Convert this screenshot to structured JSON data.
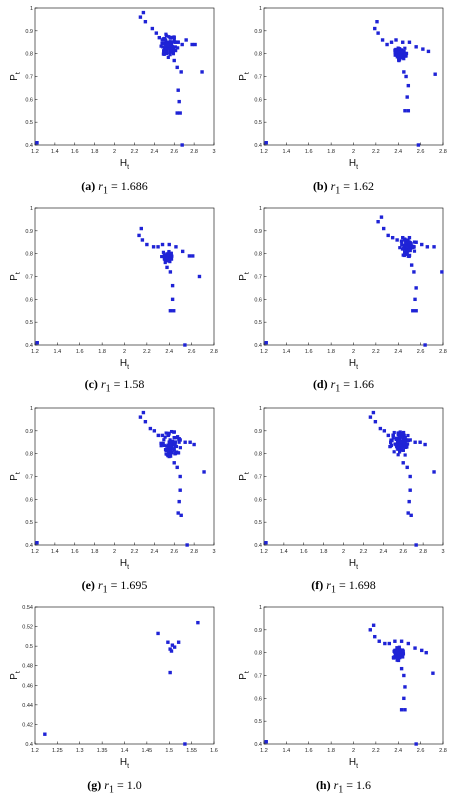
{
  "chart_data": [
    {
      "type": "scatter",
      "caption": {
        "label": "(a)",
        "var": "r",
        "sub": "1",
        "value": "= 1.686"
      },
      "xlabel": {
        "main": "H",
        "sub": "t"
      },
      "ylabel": {
        "main": "P",
        "sub": "t"
      },
      "xlim": [
        1.2,
        3.0
      ],
      "ylim": [
        0.4,
        1.0
      ],
      "xticks": [
        "1.2",
        "1.4",
        "1.6",
        "1.8",
        "2",
        "2.2",
        "2.4",
        "2.6",
        "2.8",
        "3"
      ],
      "yticks": [
        "0.4",
        "0.5",
        "0.6",
        "0.7",
        "0.8",
        "0.9",
        "1"
      ],
      "color": "#1f23d6",
      "cluster": {
        "x": 2.55,
        "y": 0.835,
        "spread": 0.1
      },
      "points": [
        [
          1.22,
          0.41
        ],
        [
          2.26,
          0.96
        ],
        [
          2.29,
          0.98
        ],
        [
          2.31,
          0.94
        ],
        [
          2.38,
          0.91
        ],
        [
          2.42,
          0.89
        ],
        [
          2.45,
          0.87
        ],
        [
          2.48,
          0.86
        ],
        [
          2.51,
          0.86
        ],
        [
          2.56,
          0.87
        ],
        [
          2.6,
          0.87
        ],
        [
          2.64,
          0.85
        ],
        [
          2.68,
          0.84
        ],
        [
          2.72,
          0.86
        ],
        [
          2.78,
          0.84
        ],
        [
          2.81,
          0.84
        ],
        [
          2.88,
          0.72
        ],
        [
          2.6,
          0.77
        ],
        [
          2.63,
          0.74
        ],
        [
          2.67,
          0.72
        ],
        [
          2.64,
          0.64
        ],
        [
          2.65,
          0.59
        ],
        [
          2.63,
          0.54
        ],
        [
          2.66,
          0.54
        ],
        [
          2.68,
          0.4
        ]
      ]
    },
    {
      "type": "scatter",
      "caption": {
        "label": "(b)",
        "var": "r",
        "sub": "1",
        "value": "= 1.62"
      },
      "xlabel": {
        "main": "H",
        "sub": "t"
      },
      "ylabel": {
        "main": "P",
        "sub": "t"
      },
      "xlim": [
        1.2,
        2.8
      ],
      "ylim": [
        0.4,
        1.0
      ],
      "xticks": [
        "1.2",
        "1.4",
        "1.6",
        "1.8",
        "2",
        "2.2",
        "2.4",
        "2.6",
        "2.8"
      ],
      "yticks": [
        "0.4",
        "0.5",
        "0.6",
        "0.7",
        "0.8",
        "0.9",
        "1"
      ],
      "color": "#1f23d6",
      "cluster": {
        "x": 2.42,
        "y": 0.8,
        "spread": 0.06
      },
      "points": [
        [
          1.22,
          0.41
        ],
        [
          2.19,
          0.91
        ],
        [
          2.21,
          0.94
        ],
        [
          2.22,
          0.89
        ],
        [
          2.26,
          0.86
        ],
        [
          2.3,
          0.84
        ],
        [
          2.34,
          0.85
        ],
        [
          2.38,
          0.86
        ],
        [
          2.44,
          0.85
        ],
        [
          2.5,
          0.85
        ],
        [
          2.56,
          0.83
        ],
        [
          2.62,
          0.82
        ],
        [
          2.67,
          0.81
        ],
        [
          2.73,
          0.71
        ],
        [
          2.45,
          0.72
        ],
        [
          2.47,
          0.7
        ],
        [
          2.49,
          0.66
        ],
        [
          2.48,
          0.61
        ],
        [
          2.46,
          0.55
        ],
        [
          2.49,
          0.55
        ],
        [
          2.58,
          0.4
        ]
      ]
    },
    {
      "type": "scatter",
      "caption": {
        "label": "(c)",
        "var": "r",
        "sub": "1",
        "value": "= 1.58"
      },
      "xlabel": {
        "main": "H",
        "sub": "t"
      },
      "ylabel": {
        "main": "P",
        "sub": "t"
      },
      "xlim": [
        1.2,
        2.8
      ],
      "ylim": [
        0.4,
        1.0
      ],
      "xticks": [
        "1.2",
        "1.4",
        "1.6",
        "1.8",
        "2",
        "2.2",
        "2.4",
        "2.6",
        "2.8"
      ],
      "yticks": [
        "0.4",
        "0.5",
        "0.6",
        "0.7",
        "0.8",
        "0.9",
        "1"
      ],
      "color": "#1f23d6",
      "cluster": {
        "x": 2.38,
        "y": 0.785,
        "spread": 0.05
      },
      "points": [
        [
          1.22,
          0.41
        ],
        [
          2.13,
          0.88
        ],
        [
          2.15,
          0.91
        ],
        [
          2.16,
          0.86
        ],
        [
          2.2,
          0.84
        ],
        [
          2.26,
          0.83
        ],
        [
          2.3,
          0.83
        ],
        [
          2.34,
          0.84
        ],
        [
          2.4,
          0.84
        ],
        [
          2.46,
          0.83
        ],
        [
          2.52,
          0.81
        ],
        [
          2.58,
          0.79
        ],
        [
          2.61,
          0.79
        ],
        [
          2.67,
          0.7
        ],
        [
          2.38,
          0.74
        ],
        [
          2.41,
          0.72
        ],
        [
          2.43,
          0.66
        ],
        [
          2.43,
          0.6
        ],
        [
          2.41,
          0.55
        ],
        [
          2.44,
          0.55
        ],
        [
          2.54,
          0.4
        ]
      ]
    },
    {
      "type": "scatter",
      "caption": {
        "label": "(d)",
        "var": "r",
        "sub": "1",
        "value": "= 1.66"
      },
      "xlabel": {
        "main": "H",
        "sub": "t"
      },
      "ylabel": {
        "main": "P",
        "sub": "t"
      },
      "xlim": [
        1.2,
        2.8
      ],
      "ylim": [
        0.4,
        1.0
      ],
      "xticks": [
        "1.2",
        "1.4",
        "1.6",
        "1.8",
        "2",
        "2.2",
        "2.4",
        "2.6",
        "2.8"
      ],
      "yticks": [
        "0.4",
        "0.5",
        "0.6",
        "0.7",
        "0.8",
        "0.9",
        "1"
      ],
      "color": "#1f23d6",
      "cluster": {
        "x": 2.48,
        "y": 0.83,
        "spread": 0.08
      },
      "points": [
        [
          1.22,
          0.41
        ],
        [
          2.22,
          0.94
        ],
        [
          2.25,
          0.96
        ],
        [
          2.27,
          0.91
        ],
        [
          2.31,
          0.88
        ],
        [
          2.35,
          0.87
        ],
        [
          2.39,
          0.86
        ],
        [
          2.44,
          0.87
        ],
        [
          2.5,
          0.87
        ],
        [
          2.56,
          0.85
        ],
        [
          2.61,
          0.84
        ],
        [
          2.66,
          0.83
        ],
        [
          2.72,
          0.83
        ],
        [
          2.79,
          0.72
        ],
        [
          2.52,
          0.75
        ],
        [
          2.54,
          0.72
        ],
        [
          2.56,
          0.65
        ],
        [
          2.55,
          0.6
        ],
        [
          2.53,
          0.55
        ],
        [
          2.56,
          0.55
        ],
        [
          2.64,
          0.4
        ]
      ]
    },
    {
      "type": "scatter",
      "caption": {
        "label": "(e)",
        "var": "r",
        "sub": "1",
        "value": "= 1.695"
      },
      "xlabel": {
        "main": "H",
        "sub": "t"
      },
      "ylabel": {
        "main": "P",
        "sub": "t"
      },
      "xlim": [
        1.2,
        3.0
      ],
      "ylim": [
        0.4,
        1.0
      ],
      "xticks": [
        "1.2",
        "1.4",
        "1.6",
        "1.8",
        "2",
        "2.2",
        "2.4",
        "2.6",
        "2.8",
        "3"
      ],
      "yticks": [
        "0.4",
        "0.5",
        "0.6",
        "0.7",
        "0.8",
        "0.9",
        "1"
      ],
      "color": "#1f23d6",
      "cluster": {
        "x": 2.56,
        "y": 0.84,
        "spread": 0.11
      },
      "points": [
        [
          1.22,
          0.41
        ],
        [
          2.26,
          0.96
        ],
        [
          2.29,
          0.98
        ],
        [
          2.31,
          0.94
        ],
        [
          2.36,
          0.91
        ],
        [
          2.4,
          0.9
        ],
        [
          2.44,
          0.88
        ],
        [
          2.48,
          0.88
        ],
        [
          2.54,
          0.88
        ],
        [
          2.6,
          0.87
        ],
        [
          2.66,
          0.86
        ],
        [
          2.71,
          0.85
        ],
        [
          2.76,
          0.85
        ],
        [
          2.8,
          0.84
        ],
        [
          2.9,
          0.72
        ],
        [
          2.6,
          0.76
        ],
        [
          2.63,
          0.74
        ],
        [
          2.66,
          0.7
        ],
        [
          2.66,
          0.64
        ],
        [
          2.65,
          0.59
        ],
        [
          2.64,
          0.54
        ],
        [
          2.67,
          0.53
        ],
        [
          2.73,
          0.4
        ]
      ]
    },
    {
      "type": "scatter",
      "caption": {
        "label": "(f)",
        "var": "r",
        "sub": "1",
        "value": "= 1.698"
      },
      "xlabel": {
        "main": "H",
        "sub": "t"
      },
      "ylabel": {
        "main": "P",
        "sub": "t"
      },
      "xlim": [
        1.2,
        3.0
      ],
      "ylim": [
        0.4,
        1.0
      ],
      "xticks": [
        "1.2",
        "1.4",
        "1.6",
        "1.8",
        "2",
        "2.2",
        "2.4",
        "2.6",
        "2.8",
        "3"
      ],
      "yticks": [
        "0.4",
        "0.5",
        "0.6",
        "0.7",
        "0.8",
        "0.9",
        "1"
      ],
      "color": "#1f23d6",
      "cluster": {
        "x": 2.57,
        "y": 0.845,
        "spread": 0.11
      },
      "points": [
        [
          1.22,
          0.41
        ],
        [
          2.27,
          0.96
        ],
        [
          2.3,
          0.98
        ],
        [
          2.32,
          0.94
        ],
        [
          2.37,
          0.91
        ],
        [
          2.41,
          0.9
        ],
        [
          2.45,
          0.88
        ],
        [
          2.5,
          0.88
        ],
        [
          2.56,
          0.88
        ],
        [
          2.62,
          0.87
        ],
        [
          2.67,
          0.86
        ],
        [
          2.72,
          0.85
        ],
        [
          2.77,
          0.85
        ],
        [
          2.82,
          0.84
        ],
        [
          2.91,
          0.72
        ],
        [
          2.6,
          0.76
        ],
        [
          2.64,
          0.74
        ],
        [
          2.67,
          0.7
        ],
        [
          2.67,
          0.64
        ],
        [
          2.66,
          0.59
        ],
        [
          2.65,
          0.54
        ],
        [
          2.68,
          0.53
        ],
        [
          2.73,
          0.4
        ]
      ]
    },
    {
      "type": "scatter",
      "caption": {
        "label": "(g)",
        "var": "r",
        "sub": "1",
        "value": "= 1.0"
      },
      "xlabel": {
        "main": "H",
        "sub": "t"
      },
      "ylabel": {
        "main": "P",
        "sub": "t"
      },
      "xlim": [
        1.2,
        1.6
      ],
      "ylim": [
        0.4,
        0.54
      ],
      "xticks": [
        "1.2",
        "1.25",
        "1.3",
        "1.35",
        "1.4",
        "1.45",
        "1.5",
        "1.55",
        "1.6"
      ],
      "yticks": [
        "0.4",
        "0.42",
        "0.44",
        "0.46",
        "0.48",
        "0.5",
        "0.52",
        "0.54"
      ],
      "color": "#1f23d6",
      "cluster": null,
      "points": [
        [
          1.222,
          0.41
        ],
        [
          1.475,
          0.513
        ],
        [
          1.497,
          0.504
        ],
        [
          1.502,
          0.497
        ],
        [
          1.507,
          0.501
        ],
        [
          1.512,
          0.499
        ],
        [
          1.505,
          0.495
        ],
        [
          1.521,
          0.504
        ],
        [
          1.502,
          0.473
        ],
        [
          1.535,
          0.4
        ],
        [
          1.564,
          0.524
        ]
      ]
    },
    {
      "type": "scatter",
      "caption": {
        "label": "(h)",
        "var": "r",
        "sub": "1",
        "value": "= 1.6"
      },
      "xlabel": {
        "main": "H",
        "sub": "t"
      },
      "ylabel": {
        "main": "P",
        "sub": "t"
      },
      "xlim": [
        1.2,
        2.8
      ],
      "ylim": [
        0.4,
        1.0
      ],
      "xticks": [
        "1.2",
        "1.4",
        "1.6",
        "1.8",
        "2",
        "2.2",
        "2.4",
        "2.6",
        "2.8"
      ],
      "yticks": [
        "0.4",
        "0.5",
        "0.6",
        "0.7",
        "0.8",
        "0.9",
        "1"
      ],
      "color": "#1f23d6",
      "cluster": {
        "x": 2.4,
        "y": 0.795,
        "spread": 0.055
      },
      "points": [
        [
          1.22,
          0.41
        ],
        [
          2.15,
          0.9
        ],
        [
          2.18,
          0.92
        ],
        [
          2.19,
          0.87
        ],
        [
          2.23,
          0.85
        ],
        [
          2.28,
          0.84
        ],
        [
          2.32,
          0.84
        ],
        [
          2.37,
          0.85
        ],
        [
          2.43,
          0.85
        ],
        [
          2.49,
          0.84
        ],
        [
          2.55,
          0.82
        ],
        [
          2.61,
          0.81
        ],
        [
          2.65,
          0.8
        ],
        [
          2.71,
          0.71
        ],
        [
          2.43,
          0.73
        ],
        [
          2.45,
          0.7
        ],
        [
          2.46,
          0.65
        ],
        [
          2.45,
          0.6
        ],
        [
          2.43,
          0.55
        ],
        [
          2.46,
          0.55
        ],
        [
          2.56,
          0.4
        ]
      ]
    }
  ]
}
